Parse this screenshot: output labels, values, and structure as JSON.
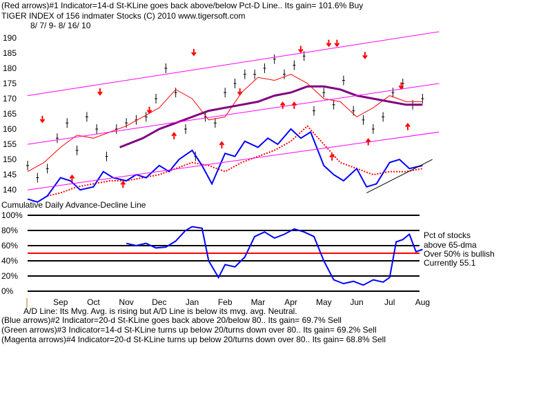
{
  "header": {
    "line1": "(Red arrows)#1 Indicator=14-d St-KLine goes back above/below Pct-D Line.. Its gain= 101.6% Buy",
    "line2": "TIGER INDEX of  156 indmater Stocks  (C) 2010  www.tigersoft.com",
    "line3": "8/ 7/ 9- 8/ 16/ 10"
  },
  "chart_data": [
    {
      "type": "line",
      "title": "TIGER INDEX of  156 indmater Stocks",
      "subtitle": "8/ 7/ 9- 8/ 16/ 10",
      "y_ticks": [
        140,
        145,
        150,
        155,
        160,
        165,
        170,
        175,
        180,
        185,
        190
      ],
      "ylim": [
        138,
        192
      ],
      "x_ticks": [
        "Sep",
        "Oct",
        "Nov",
        "Dec",
        "Jan",
        "Feb",
        "Mar",
        "Apr",
        "May",
        "Jun",
        "Jul",
        "Aug"
      ],
      "x_month_positions": [
        1,
        2,
        3,
        4,
        5,
        6,
        7,
        8,
        9,
        10,
        11,
        12
      ],
      "series": [
        {
          "role": "price-bars",
          "color": "#000000",
          "x": [
            0.0,
            0.3,
            0.6,
            0.9,
            1.2,
            1.5,
            1.8,
            2.1,
            2.4,
            2.7,
            3.0,
            3.3,
            3.6,
            3.9,
            4.2,
            4.5,
            4.8,
            5.1,
            5.4,
            5.7,
            6.0,
            6.3,
            6.6,
            6.9,
            7.2,
            7.5,
            7.8,
            8.1,
            8.4,
            8.7,
            9.0,
            9.3,
            9.6,
            9.9,
            10.2,
            10.5,
            10.8,
            11.1,
            11.4,
            11.7,
            12.0
          ],
          "y": [
            148,
            144,
            147,
            157,
            162,
            153,
            164,
            160,
            151,
            160,
            162,
            163,
            164,
            170,
            180,
            172,
            160,
            151,
            164,
            162,
            172,
            175,
            178,
            178,
            180,
            183,
            178,
            181,
            184,
            166,
            172,
            168,
            176,
            166,
            163,
            160,
            164,
            172,
            175,
            168,
            170
          ]
        },
        {
          "role": "short-moving-average",
          "color": "#ff0000",
          "x": [
            0.0,
            0.5,
            1.0,
            1.5,
            2.0,
            2.5,
            3.0,
            3.5,
            4.0,
            4.5,
            5.0,
            5.5,
            6.0,
            6.5,
            7.0,
            7.5,
            8.0,
            8.5,
            9.0,
            9.5,
            10.0,
            10.5,
            11.0,
            11.5,
            12.0
          ],
          "y": [
            146,
            149,
            154,
            158,
            157,
            159,
            161,
            164,
            167,
            173,
            170,
            163,
            164,
            172,
            177,
            176,
            178,
            175,
            170,
            169,
            164,
            167,
            171,
            169,
            169
          ]
        },
        {
          "role": "long-moving-average",
          "color": "#800080",
          "x": [
            2.8,
            3.5,
            4.0,
            4.5,
            5.0,
            5.5,
            6.0,
            6.5,
            7.0,
            7.5,
            8.0,
            8.5,
            9.0,
            9.5,
            10.0,
            10.5,
            11.0,
            11.5,
            12.0
          ],
          "y": [
            154,
            157,
            160,
            162,
            164,
            166,
            167,
            168,
            169,
            171,
            172,
            174,
            174,
            173,
            171,
            170,
            169,
            168,
            168
          ]
        },
        {
          "role": "dotted-average",
          "color": "#ff0000",
          "x": [
            0.6,
            1.0,
            1.5,
            2.0,
            2.5,
            3.0,
            3.5,
            4.0,
            4.5,
            5.0,
            5.5,
            6.0,
            6.5,
            7.0,
            7.5,
            8.0,
            8.5,
            9.0,
            9.5,
            10.0,
            10.5,
            11.0,
            11.5,
            12.0
          ],
          "y": [
            138,
            139,
            141,
            142,
            143,
            143,
            144,
            145,
            147,
            149,
            148,
            146,
            149,
            151,
            153,
            156,
            161,
            155,
            149,
            147,
            145,
            146,
            146,
            147
          ]
        },
        {
          "role": "advance-decline-line",
          "color": "#0000ff",
          "x": [
            0.0,
            0.3,
            0.6,
            1.0,
            1.3,
            1.6,
            2.0,
            2.3,
            2.6,
            3.0,
            3.3,
            3.6,
            4.0,
            4.3,
            4.6,
            5.0,
            5.3,
            5.6,
            6.0,
            6.3,
            6.6,
            7.0,
            7.3,
            7.6,
            8.0,
            8.3,
            8.6,
            9.0,
            9.3,
            9.6,
            10.0,
            10.3,
            10.6,
            11.0,
            11.3,
            11.6,
            12.0
          ],
          "y": [
            137,
            136,
            138,
            144,
            143,
            140,
            141,
            146,
            144,
            143,
            145,
            144,
            148,
            146,
            150,
            153,
            148,
            142,
            152,
            151,
            156,
            154,
            157,
            155,
            160,
            157,
            159,
            148,
            145,
            143,
            147,
            141,
            142,
            149,
            150,
            147,
            148
          ]
        },
        {
          "role": "upper-channel-line",
          "color": "#ff00ff",
          "x": [
            0,
            12.5
          ],
          "y": [
            171,
            192
          ]
        },
        {
          "role": "lower-channel-line",
          "color": "#ff00ff",
          "x": [
            0,
            12.5
          ],
          "y": [
            155,
            175
          ]
        },
        {
          "role": "base-channel-line",
          "color": "#ff00ff",
          "x": [
            0,
            12.5
          ],
          "y": [
            140,
            159
          ]
        },
        {
          "role": "trend-line",
          "color": "#000000",
          "x": [
            10.3,
            12.3
          ],
          "y": [
            139,
            150
          ]
        }
      ],
      "arrows": {
        "down": [
          {
            "x": 0.45,
            "y": 163
          },
          {
            "x": 2.2,
            "y": 172
          },
          {
            "x": 3.7,
            "y": 166
          },
          {
            "x": 5.05,
            "y": 185
          },
          {
            "x": 6.45,
            "y": 172
          },
          {
            "x": 8.3,
            "y": 186
          },
          {
            "x": 9.15,
            "y": 188
          },
          {
            "x": 9.4,
            "y": 188
          },
          {
            "x": 10.25,
            "y": 184
          },
          {
            "x": 11.35,
            "y": 174
          }
        ],
        "up": [
          {
            "x": 1.35,
            "y": 144
          },
          {
            "x": 2.9,
            "y": 142
          },
          {
            "x": 4.45,
            "y": 158
          },
          {
            "x": 5.9,
            "y": 155
          },
          {
            "x": 7.75,
            "y": 168
          },
          {
            "x": 8.1,
            "y": 168
          },
          {
            "x": 9.25,
            "y": 151
          },
          {
            "x": 10.35,
            "y": 156
          },
          {
            "x": 11.55,
            "y": 161
          }
        ]
      }
    },
    {
      "type": "line",
      "title": "Cumulative Daily Advance-Decline Line",
      "y_ticks": [
        "0%",
        "20%",
        "40%",
        "60%",
        "80%",
        "100%"
      ],
      "ylim": [
        0,
        100
      ],
      "threshold": 50,
      "threshold_color": "#ff0000",
      "annotations": [
        "Pct of stocks",
        "above 65-dma",
        "Over 50% is bullish",
        "Currently  55.1"
      ],
      "current_value": 55.1,
      "series": [
        {
          "role": "pct-above-65-dma",
          "color": "#0000ff",
          "x": [
            3.0,
            3.3,
            3.6,
            3.9,
            4.2,
            4.5,
            4.8,
            5.0,
            5.3,
            5.5,
            5.8,
            6.0,
            6.3,
            6.6,
            6.9,
            7.2,
            7.5,
            7.8,
            8.1,
            8.4,
            8.7,
            9.0,
            9.3,
            9.6,
            9.9,
            10.2,
            10.5,
            10.8,
            11.0,
            11.2,
            11.4,
            11.6,
            11.8,
            12.0
          ],
          "y": [
            63,
            60,
            63,
            57,
            58,
            66,
            80,
            85,
            83,
            40,
            18,
            35,
            32,
            45,
            72,
            78,
            70,
            75,
            82,
            78,
            72,
            40,
            15,
            10,
            13,
            8,
            15,
            12,
            18,
            65,
            68,
            75,
            52,
            55
          ]
        }
      ]
    }
  ],
  "footer": {
    "ad_note": "A/D Line: Its Mvg. Avg. is rising but A/D Line is below its mvg. avg. Neutral.",
    "line_blue": "(Blue arrows)#2 Indicator=20-d St-KLine goes back above 20/below 80.. Its gain= 69.7% Sell",
    "line_green": "(Green arrows)#3 Indicator=14-d St-KLine turns up below 20/turns down over 80.. Its gain= 69.2% Sell",
    "line_magenta": "(Magenta arrows)#4 Indicator=20-d St-KLine turns up below 20/turns down over 80.. Its gain= 68.8% Sell"
  }
}
